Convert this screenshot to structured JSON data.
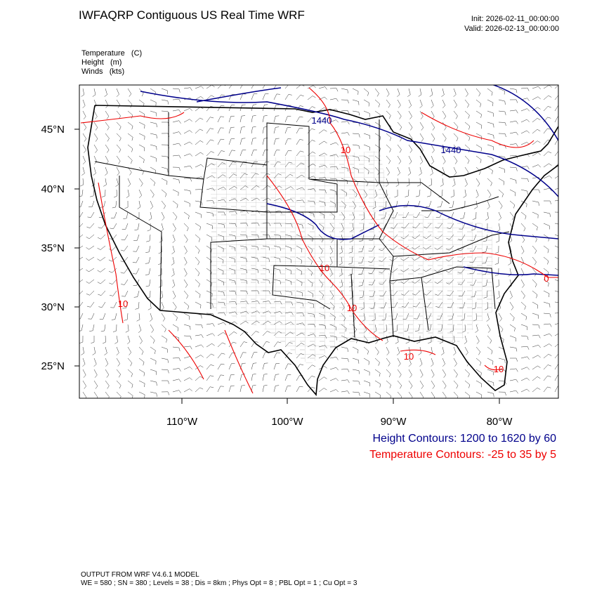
{
  "header": {
    "title": "IWFAQRP Contiguous US Real Time WRF",
    "init": "Init: 2026-02-11_00:00:00",
    "valid": "Valid: 2026-02-13_00:00:00"
  },
  "fields": [
    "Temperature   (C)",
    "Height   (m)",
    "Winds   (kts)"
  ],
  "map": {
    "lat_labels": [
      "45°N",
      "40°N",
      "35°N",
      "30°N",
      "25°N"
    ],
    "lon_labels": [
      "110°W",
      "100°W",
      "90°W",
      "80°W"
    ],
    "contour_labels": [
      "1440",
      "1440",
      "10",
      "10",
      "10",
      "10",
      "10",
      "10",
      "0"
    ]
  },
  "legend": {
    "height": "Height Contours: 1200 to 1620 by 60",
    "temperature": "Temperature Contours: -25 to 35 by 5"
  },
  "footer": [
    "OUTPUT FROM WRF V4.6.1 MODEL",
    "WE = 580 ; SN = 380 ; Levels = 38 ; Dis = 8km ; Phys Opt = 8 ; PBL Opt = 1 ; Cu Opt = 3"
  ]
}
